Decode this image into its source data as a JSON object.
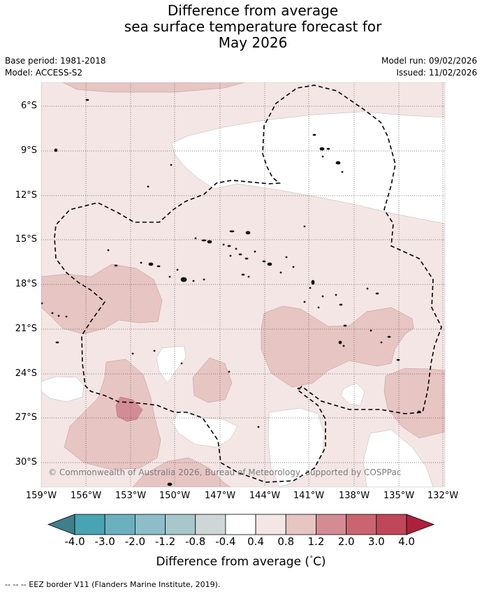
{
  "title": {
    "line1": "Difference from average",
    "line2": "sea surface temperature forecast for",
    "line3": "May 2026"
  },
  "meta": {
    "base_period": "Base period: 1981-2018",
    "model": "Model: ACCESS-S2",
    "model_run": "Model run: 09/02/2026",
    "issued": "Issued: 11/02/2026"
  },
  "map": {
    "lat_labels": [
      "6°S",
      "9°S",
      "12°S",
      "15°S",
      "18°S",
      "21°S",
      "24°S",
      "27°S",
      "30°S"
    ],
    "lon_labels": [
      "159°W",
      "156°W",
      "153°W",
      "150°W",
      "147°W",
      "144°W",
      "141°W",
      "138°W",
      "135°W",
      "132°W"
    ],
    "copyright": "© Commonwealth of Australia 2026, Bureau of Meteorology, supported by COSPPac",
    "colors": {
      "band_04_08": "#f4e6e5",
      "band_08_12": "#e6c5c3",
      "band_12_20": "#d48c94",
      "neutral": "#ffffff",
      "eez_border": "#000000"
    }
  },
  "colorbar": {
    "ticks": [
      "-4.0",
      "-3.0",
      "-2.0",
      "-1.2",
      "-0.8",
      "-0.4",
      "0.4",
      "0.8",
      "1.2",
      "2.0",
      "3.0",
      "4.0"
    ],
    "colors": [
      "#3e7f8b",
      "#48a3b3",
      "#6cb0bf",
      "#8dbec8",
      "#a8c7ca",
      "#cfd6d7",
      "#ffffff",
      "#f4e6e5",
      "#e6c5c3",
      "#d48c94",
      "#cb6471",
      "#c0475a",
      "#b0203c"
    ],
    "label": "Difference from average (",
    "unit": "°",
    "unit_letter": "C)"
  },
  "footer": {
    "eez_note": "--  --  -- EEZ border V11 (Flanders Marine Institute, 2019)."
  }
}
